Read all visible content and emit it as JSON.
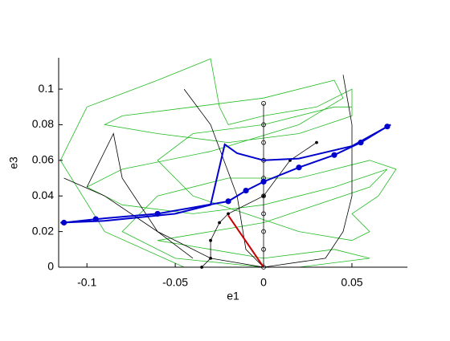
{
  "chart_data": {
    "type": "line",
    "xlabel": "e1",
    "ylabel": "e3",
    "xlim": [
      -0.116,
      0.0814
    ],
    "ylim": [
      0,
      0.1176
    ],
    "xticks": [
      -0.1,
      -0.05,
      0,
      0.05
    ],
    "yticks": [
      0,
      0.02,
      0.04,
      0.06,
      0.08,
      0.1
    ],
    "series": [
      {
        "color": "#22bb22",
        "width": 0.8,
        "x": [
          -0.045,
          -0.09,
          -0.115,
          -0.1,
          -0.06,
          -0.03,
          -0.025,
          -0.02,
          0,
          0.03,
          0.05,
          0.05,
          0.02,
          -0.02,
          -0.06,
          -0.09,
          -0.08,
          -0.04,
          0,
          0.04,
          0.045,
          0.02,
          -0.03,
          -0.08,
          -0.1,
          -0.08,
          -0.04,
          0,
          0.04,
          0.07,
          0.06,
          0.03,
          0,
          -0.03,
          -0.06,
          -0.03,
          0,
          0.04,
          0.06,
          0.02,
          0
        ],
        "values": [
          0,
          0.02,
          0.06,
          0.09,
          0.105,
          0.117,
          0.09,
          0.08,
          0.085,
          0.09,
          0.1,
          0.085,
          0.075,
          0.07,
          0.075,
          0.08,
          0.085,
          0.09,
          0.095,
          0.105,
          0.095,
          0.08,
          0.065,
          0.055,
          0.045,
          0.035,
          0.03,
          0.035,
          0.045,
          0.055,
          0.045,
          0.035,
          0.025,
          0.02,
          0.015,
          0.01,
          0.005,
          0.01,
          0.005,
          0,
          0
        ]
      },
      {
        "color": "#22bb22",
        "width": 0.8,
        "x": [
          0,
          -0.05,
          -0.08,
          -0.06,
          -0.02,
          0.02,
          0.06,
          0.075,
          0.065,
          0.05,
          0.06,
          0.05,
          0.02,
          -0.01,
          -0.04,
          -0.06,
          -0.04,
          0,
          0.04,
          0.05
        ],
        "values": [
          0,
          0.005,
          0.02,
          0.04,
          0.05,
          0.05,
          0.06,
          0.055,
          0.04,
          0.03,
          0.02,
          0.015,
          0.02,
          0.03,
          0.04,
          0.06,
          0.075,
          0.08,
          0.09,
          0.09
        ]
      },
      {
        "color": "#000000",
        "width": 0.8,
        "x": [
          -0.113,
          -0.09,
          -0.06,
          -0.03,
          0
        ],
        "values": [
          0.05,
          0.04,
          0.02,
          0.005,
          0
        ]
      },
      {
        "color": "#000000",
        "width": 0.8,
        "x": [
          -0.1,
          -0.085,
          -0.08,
          -0.06,
          -0.04
        ],
        "values": [
          0.045,
          0.075,
          0.05,
          0.02,
          0.005
        ]
      },
      {
        "color": "#000000",
        "width": 0.8,
        "x": [
          0.045,
          0.05,
          0.05,
          0.045,
          0.035,
          0
        ],
        "values": [
          0.108,
          0.08,
          0.04,
          0.02,
          0.005,
          0
        ]
      },
      {
        "color": "#000000",
        "width": 0.8,
        "x": [
          -0.045,
          -0.03,
          -0.015,
          -0.01,
          0
        ],
        "values": [
          0.1,
          0.08,
          0.04,
          0.01,
          0
        ]
      },
      {
        "color": "#000000",
        "width": 0.8,
        "marker": "circle",
        "x": [
          0,
          0,
          0,
          0,
          0,
          0,
          0,
          0,
          0,
          0
        ],
        "values": [
          0,
          0.01,
          0.02,
          0.03,
          0.04,
          0.05,
          0.06,
          0.07,
          0.08,
          0.092
        ]
      },
      {
        "color": "#000000",
        "width": 0.8,
        "marker": "dot",
        "x": [
          -0.035,
          -0.03,
          -0.03,
          -0.025,
          -0.02,
          0,
          0.015,
          0.03
        ],
        "values": [
          0,
          0.005,
          0.015,
          0.025,
          0.03,
          0.04,
          0.06,
          0.07
        ]
      },
      {
        "color": "#0000cc",
        "width": 2,
        "marker": "dot",
        "x": [
          -0.113,
          -0.095,
          -0.06,
          -0.02,
          -0.01,
          0,
          0.02,
          0.04,
          0.055,
          0.07
        ],
        "values": [
          0.025,
          0.027,
          0.03,
          0.037,
          0.043,
          0.048,
          0.056,
          0.063,
          0.07,
          0.079
        ]
      },
      {
        "color": "#0000cc",
        "width": 2,
        "x": [
          -0.115,
          -0.09,
          -0.05,
          -0.03,
          -0.022,
          -0.015,
          0,
          0.02,
          0.05,
          0.072
        ],
        "values": [
          0.025,
          0.026,
          0.03,
          0.035,
          0.069,
          0.064,
          0.06,
          0.061,
          0.068,
          0.08
        ]
      },
      {
        "color": "#cc0000",
        "width": 2,
        "x": [
          -0.02,
          0
        ],
        "values": [
          0.029,
          0
        ]
      }
    ]
  }
}
